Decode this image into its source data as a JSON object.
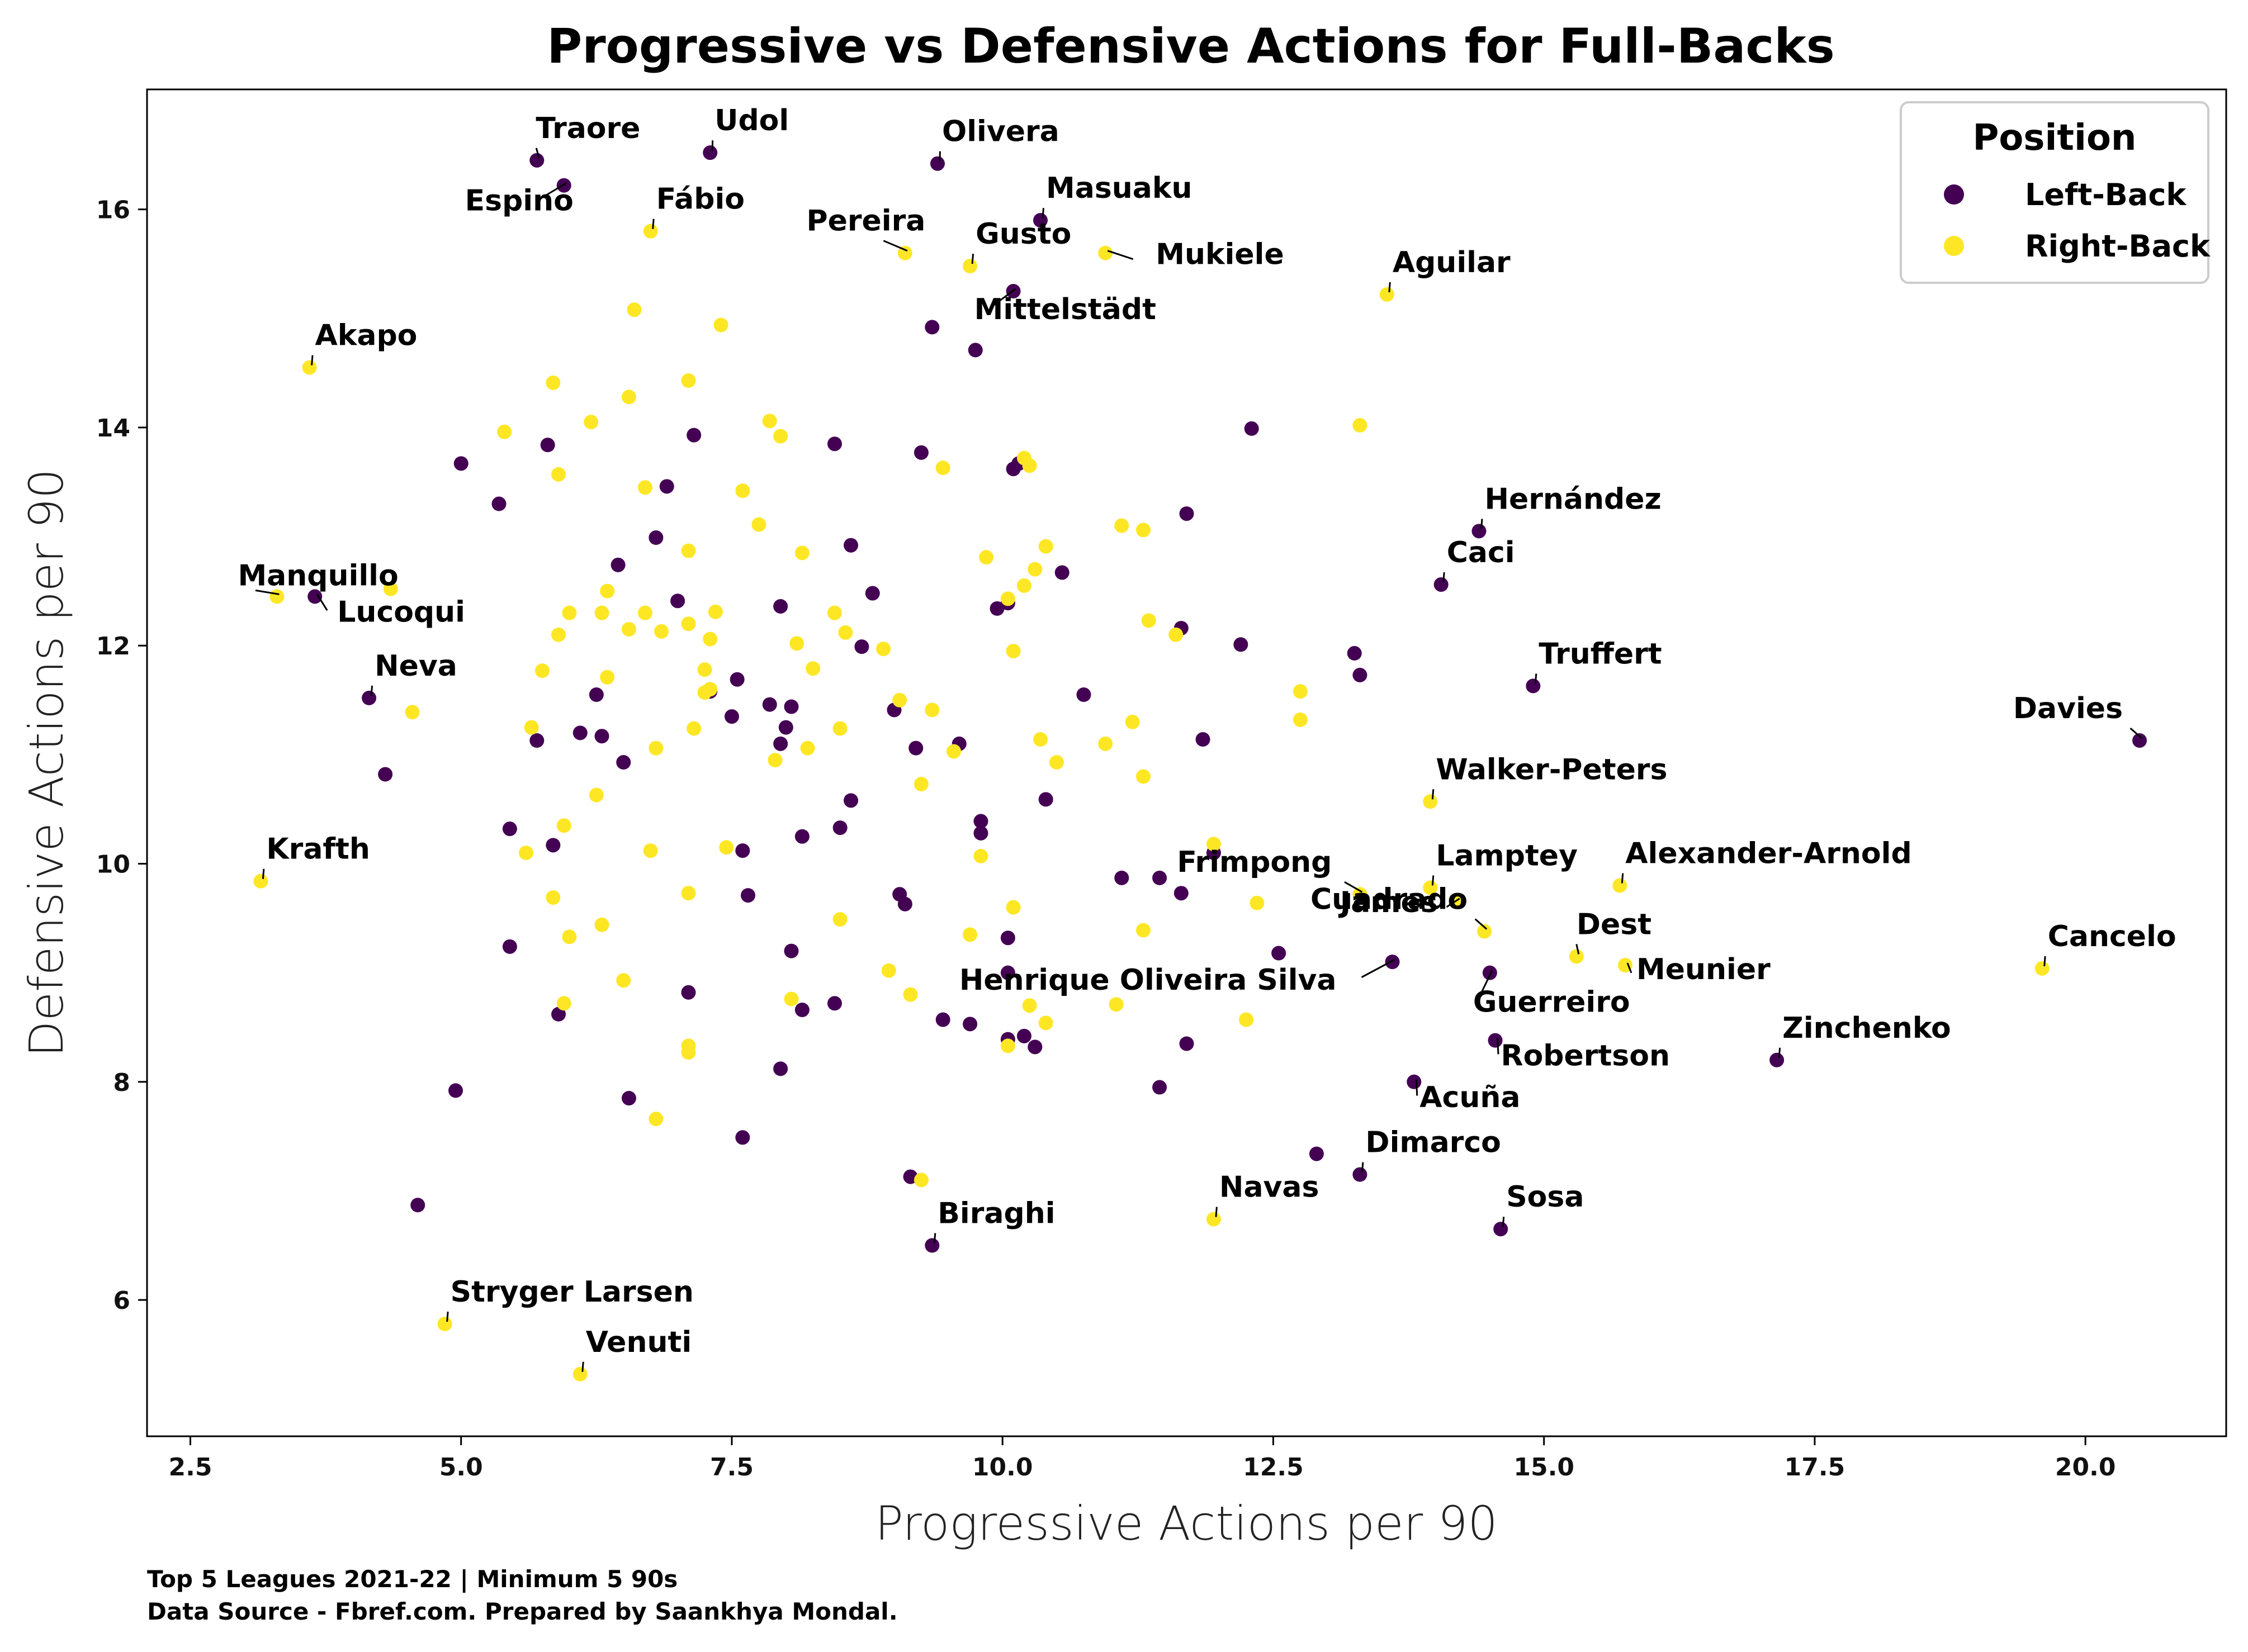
{
  "chart_data": {
    "type": "scatter",
    "title": "Progressive vs Defensive Actions for Full-Backs",
    "xlabel": "Progressive Actions per 90",
    "ylabel": "Defensive Actions per 90",
    "xlim": [
      2.1,
      21.3
    ],
    "ylim": [
      4.75,
      17.1
    ],
    "x_ticks": [
      2.5,
      5.0,
      7.5,
      10.0,
      12.5,
      15.0,
      17.5,
      20.0
    ],
    "x_tick_labels": [
      "2.5",
      "5.0",
      "7.5",
      "10.0",
      "12.5",
      "15.0",
      "17.5",
      "20.0"
    ],
    "y_ticks": [
      6,
      8,
      10,
      12,
      14,
      16
    ],
    "y_tick_labels": [
      "6",
      "8",
      "10",
      "12",
      "14",
      "16"
    ],
    "grid": false,
    "legend": {
      "title": "Position",
      "placement": "top-right",
      "entries": [
        {
          "label": "Left-Back",
          "color": "#440154"
        },
        {
          "label": "Right-Back",
          "color": "#fde725"
        }
      ]
    },
    "colors": {
      "Left-Back": "#440154",
      "Right-Back": "#fde725"
    },
    "footer": [
      "Top 5 Leagues 2021-22 | Minimum 5 90s",
      "Data Source - Fbref.com. Prepared by Saankhya Mondal."
    ],
    "labeled_points": [
      {
        "name": "Traore",
        "x": 5.7,
        "y": 16.45,
        "position": "Left-Back"
      },
      {
        "name": "Espino",
        "x": 5.95,
        "y": 16.22,
        "position": "Left-Back"
      },
      {
        "name": "Udol",
        "x": 7.3,
        "y": 16.52,
        "position": "Left-Back"
      },
      {
        "name": "Fábio",
        "x": 6.75,
        "y": 15.8,
        "position": "Right-Back"
      },
      {
        "name": "Olivera",
        "x": 9.4,
        "y": 16.42,
        "position": "Left-Back"
      },
      {
        "name": "Masuaku",
        "x": 10.35,
        "y": 15.9,
        "position": "Left-Back"
      },
      {
        "name": "Pereira",
        "x": 9.1,
        "y": 15.6,
        "position": "Right-Back"
      },
      {
        "name": "Gusto",
        "x": 9.7,
        "y": 15.48,
        "position": "Right-Back"
      },
      {
        "name": "Mukiele",
        "x": 10.95,
        "y": 15.6,
        "position": "Right-Back"
      },
      {
        "name": "Mittelstädt",
        "x": 10.1,
        "y": 15.25,
        "position": "Left-Back"
      },
      {
        "name": "Aguilar",
        "x": 13.55,
        "y": 15.22,
        "position": "Right-Back"
      },
      {
        "name": "Akapo",
        "x": 3.6,
        "y": 14.55,
        "position": "Right-Back"
      },
      {
        "name": "Hernández",
        "x": 14.4,
        "y": 13.05,
        "position": "Left-Back"
      },
      {
        "name": "Caci",
        "x": 14.05,
        "y": 12.56,
        "position": "Left-Back"
      },
      {
        "name": "Manquillo",
        "x": 3.3,
        "y": 12.45,
        "position": "Right-Back"
      },
      {
        "name": "Lucoqui",
        "x": 3.65,
        "y": 12.45,
        "position": "Left-Back"
      },
      {
        "name": "Truffert",
        "x": 14.9,
        "y": 11.63,
        "position": "Left-Back"
      },
      {
        "name": "Neva",
        "x": 4.15,
        "y": 11.52,
        "position": "Left-Back"
      },
      {
        "name": "Davies",
        "x": 20.5,
        "y": 11.13,
        "position": "Left-Back"
      },
      {
        "name": "Walker-Peters",
        "x": 13.95,
        "y": 10.57,
        "position": "Right-Back"
      },
      {
        "name": "Krafth",
        "x": 3.15,
        "y": 9.84,
        "position": "Right-Back"
      },
      {
        "name": "Frimpong",
        "x": 13.3,
        "y": 9.72,
        "position": "Right-Back"
      },
      {
        "name": "Lamptey",
        "x": 13.95,
        "y": 9.78,
        "position": "Right-Back"
      },
      {
        "name": "James",
        "x": 14.2,
        "y": 9.66,
        "position": "Right-Back"
      },
      {
        "name": "Alexander-Arnold",
        "x": 15.7,
        "y": 9.8,
        "position": "Right-Back"
      },
      {
        "name": "Dest",
        "x": 15.3,
        "y": 9.15,
        "position": "Right-Back"
      },
      {
        "name": "Cuadrado",
        "x": 14.45,
        "y": 9.38,
        "position": "Right-Back"
      },
      {
        "name": "Henrique Oliveira Silva",
        "x": 13.6,
        "y": 9.1,
        "position": "Left-Back"
      },
      {
        "name": "Meunier",
        "x": 15.75,
        "y": 9.07,
        "position": "Right-Back"
      },
      {
        "name": "Cancelo",
        "x": 19.6,
        "y": 9.04,
        "position": "Right-Back"
      },
      {
        "name": "Guerreiro",
        "x": 14.5,
        "y": 9.0,
        "position": "Left-Back"
      },
      {
        "name": "Robertson",
        "x": 14.55,
        "y": 8.38,
        "position": "Left-Back"
      },
      {
        "name": "Zinchenko",
        "x": 17.15,
        "y": 8.2,
        "position": "Left-Back"
      },
      {
        "name": "Acuña",
        "x": 13.8,
        "y": 8.0,
        "position": "Left-Back"
      },
      {
        "name": "Dimarco",
        "x": 13.3,
        "y": 7.15,
        "position": "Left-Back"
      },
      {
        "name": "Navas",
        "x": 11.95,
        "y": 6.74,
        "position": "Right-Back"
      },
      {
        "name": "Sosa",
        "x": 14.6,
        "y": 6.65,
        "position": "Left-Back"
      },
      {
        "name": "Biraghi",
        "x": 9.35,
        "y": 6.5,
        "position": "Left-Back"
      },
      {
        "name": "Stryger Larsen",
        "x": 4.85,
        "y": 5.78,
        "position": "Right-Back"
      },
      {
        "name": "Venuti",
        "x": 6.1,
        "y": 5.32,
        "position": "Right-Back"
      }
    ],
    "series": [
      {
        "name": "Left-Back",
        "points": [
          [
            5.0,
            13.67
          ],
          [
            5.35,
            13.3
          ],
          [
            5.8,
            13.84
          ],
          [
            7.15,
            13.93
          ],
          [
            8.45,
            13.85
          ],
          [
            9.25,
            13.77
          ],
          [
            9.35,
            14.92
          ],
          [
            9.75,
            14.71
          ],
          [
            12.3,
            13.99
          ],
          [
            10.1,
            13.62
          ],
          [
            10.15,
            13.67
          ],
          [
            11.7,
            13.21
          ],
          [
            6.9,
            13.46
          ],
          [
            6.45,
            12.74
          ],
          [
            6.8,
            12.99
          ],
          [
            7.0,
            12.41
          ],
          [
            7.95,
            12.36
          ],
          [
            8.6,
            12.92
          ],
          [
            8.8,
            12.48
          ],
          [
            9.95,
            12.34
          ],
          [
            10.05,
            12.39
          ],
          [
            10.55,
            12.67
          ],
          [
            11.65,
            12.16
          ],
          [
            12.2,
            12.01
          ],
          [
            13.25,
            11.93
          ],
          [
            13.3,
            11.73
          ],
          [
            6.25,
            11.55
          ],
          [
            7.3,
            11.58
          ],
          [
            7.55,
            11.69
          ],
          [
            7.85,
            11.46
          ],
          [
            8.05,
            11.44
          ],
          [
            8.7,
            11.99
          ],
          [
            9.0,
            11.41
          ],
          [
            10.75,
            11.55
          ],
          [
            5.7,
            11.13
          ],
          [
            6.1,
            11.2
          ],
          [
            6.3,
            11.17
          ],
          [
            6.5,
            10.93
          ],
          [
            7.5,
            11.35
          ],
          [
            7.95,
            11.1
          ],
          [
            8.0,
            11.25
          ],
          [
            9.2,
            11.06
          ],
          [
            9.6,
            11.1
          ],
          [
            11.85,
            11.14
          ],
          [
            4.3,
            10.82
          ],
          [
            5.45,
            10.32
          ],
          [
            5.85,
            10.17
          ],
          [
            7.6,
            10.12
          ],
          [
            8.15,
            10.25
          ],
          [
            8.5,
            10.33
          ],
          [
            8.6,
            10.58
          ],
          [
            9.8,
            10.39
          ],
          [
            9.8,
            10.28
          ],
          [
            10.4,
            10.59
          ],
          [
            11.95,
            10.1
          ],
          [
            9.05,
            9.72
          ],
          [
            9.1,
            9.63
          ],
          [
            10.05,
            9.32
          ],
          [
            11.1,
            9.87
          ],
          [
            11.45,
            9.87
          ],
          [
            11.65,
            9.73
          ],
          [
            7.65,
            9.71
          ],
          [
            5.45,
            9.24
          ],
          [
            8.05,
            9.2
          ],
          [
            12.55,
            9.18
          ],
          [
            10.05,
            9.0
          ],
          [
            7.1,
            8.82
          ],
          [
            5.9,
            8.62
          ],
          [
            8.15,
            8.66
          ],
          [
            8.45,
            8.72
          ],
          [
            9.45,
            8.57
          ],
          [
            9.7,
            8.53
          ],
          [
            10.05,
            8.39
          ],
          [
            10.2,
            8.42
          ],
          [
            10.3,
            8.32
          ],
          [
            11.7,
            8.35
          ],
          [
            7.95,
            8.12
          ],
          [
            4.95,
            7.92
          ],
          [
            6.55,
            7.85
          ],
          [
            11.45,
            7.95
          ],
          [
            7.6,
            7.49
          ],
          [
            12.9,
            7.34
          ],
          [
            9.15,
            7.13
          ],
          [
            4.6,
            6.87
          ]
        ]
      },
      {
        "name": "Right-Back",
        "points": [
          [
            6.6,
            15.08
          ],
          [
            7.4,
            14.94
          ],
          [
            5.85,
            14.41
          ],
          [
            7.1,
            14.43
          ],
          [
            6.55,
            14.28
          ],
          [
            5.4,
            13.96
          ],
          [
            6.2,
            14.05
          ],
          [
            7.85,
            14.06
          ],
          [
            7.95,
            13.92
          ],
          [
            13.3,
            14.02
          ],
          [
            5.9,
            13.57
          ],
          [
            9.45,
            13.63
          ],
          [
            10.2,
            13.72
          ],
          [
            10.25,
            13.65
          ],
          [
            6.7,
            13.45
          ],
          [
            7.6,
            13.42
          ],
          [
            7.75,
            13.11
          ],
          [
            11.1,
            13.1
          ],
          [
            11.3,
            13.06
          ],
          [
            7.1,
            12.87
          ],
          [
            8.15,
            12.85
          ],
          [
            9.85,
            12.81
          ],
          [
            10.4,
            12.91
          ],
          [
            10.3,
            12.7
          ],
          [
            10.2,
            12.55
          ],
          [
            10.05,
            12.43
          ],
          [
            4.35,
            12.52
          ],
          [
            6.35,
            12.5
          ],
          [
            6.0,
            12.3
          ],
          [
            6.3,
            12.3
          ],
          [
            6.55,
            12.15
          ],
          [
            6.7,
            12.3
          ],
          [
            6.85,
            12.13
          ],
          [
            7.1,
            12.2
          ],
          [
            7.35,
            12.31
          ],
          [
            7.3,
            12.06
          ],
          [
            8.45,
            12.3
          ],
          [
            8.55,
            12.12
          ],
          [
            11.35,
            12.23
          ],
          [
            11.6,
            12.1
          ],
          [
            5.9,
            12.1
          ],
          [
            5.75,
            11.77
          ],
          [
            6.35,
            11.71
          ],
          [
            7.25,
            11.78
          ],
          [
            8.25,
            11.79
          ],
          [
            8.1,
            12.02
          ],
          [
            8.9,
            11.97
          ],
          [
            10.1,
            11.95
          ],
          [
            12.75,
            11.58
          ],
          [
            4.55,
            11.39
          ],
          [
            5.65,
            11.25
          ],
          [
            7.25,
            11.57
          ],
          [
            9.05,
            11.5
          ],
          [
            9.35,
            11.41
          ],
          [
            12.75,
            11.32
          ],
          [
            11.2,
            11.3
          ],
          [
            10.35,
            11.14
          ],
          [
            10.95,
            11.1
          ],
          [
            8.2,
            11.06
          ],
          [
            8.5,
            11.24
          ],
          [
            6.8,
            11.06
          ],
          [
            7.15,
            11.24
          ],
          [
            7.3,
            11.6
          ],
          [
            9.55,
            11.03
          ],
          [
            10.5,
            10.93
          ],
          [
            7.9,
            10.95
          ],
          [
            9.25,
            10.73
          ],
          [
            11.3,
            10.8
          ],
          [
            6.25,
            10.63
          ],
          [
            5.95,
            10.35
          ],
          [
            5.6,
            10.1
          ],
          [
            6.75,
            10.12
          ],
          [
            7.45,
            10.15
          ],
          [
            9.8,
            10.07
          ],
          [
            11.95,
            10.18
          ],
          [
            5.85,
            9.69
          ],
          [
            7.1,
            9.73
          ],
          [
            8.5,
            9.49
          ],
          [
            10.1,
            9.6
          ],
          [
            11.3,
            9.39
          ],
          [
            12.35,
            9.64
          ],
          [
            6.3,
            9.44
          ],
          [
            6.0,
            9.33
          ],
          [
            9.7,
            9.35
          ],
          [
            6.5,
            8.93
          ],
          [
            5.95,
            8.72
          ],
          [
            8.05,
            8.76
          ],
          [
            8.95,
            9.02
          ],
          [
            9.15,
            8.8
          ],
          [
            10.25,
            8.7
          ],
          [
            11.05,
            8.71
          ],
          [
            12.25,
            8.57
          ],
          [
            10.4,
            8.54
          ],
          [
            10.05,
            8.33
          ],
          [
            7.1,
            8.33
          ],
          [
            7.1,
            8.27
          ],
          [
            6.8,
            7.66
          ],
          [
            9.25,
            7.1
          ]
        ]
      }
    ]
  }
}
